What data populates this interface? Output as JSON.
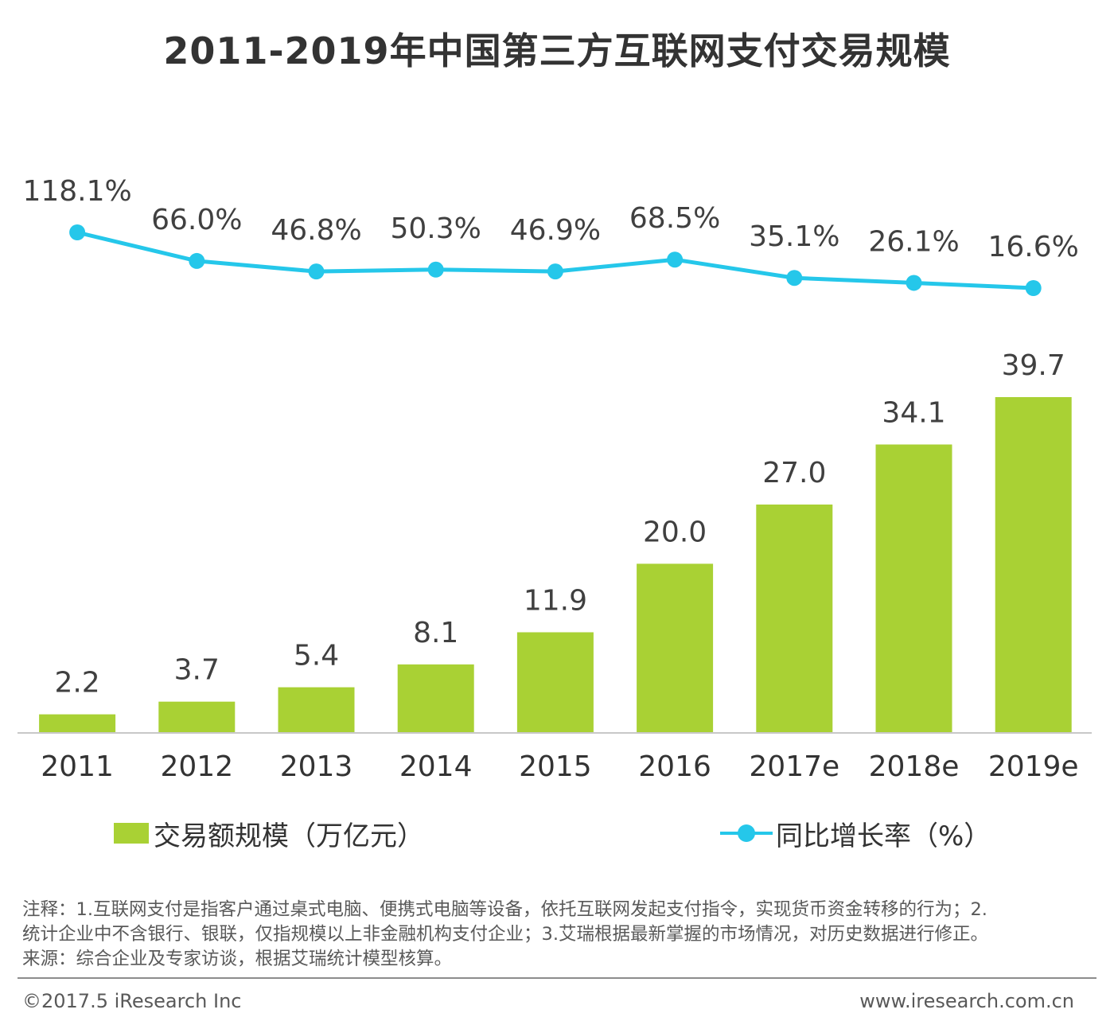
{
  "chart_data": {
    "type": "bar+line",
    "title": "2011-2019年中国第三方互联网支付交易规模",
    "categories": [
      "2011",
      "2012",
      "2013",
      "2014",
      "2015",
      "2016",
      "2017e",
      "2018e",
      "2019e"
    ],
    "series": [
      {
        "name": "交易额规模（万亿元）",
        "type": "bar",
        "values": [
          2.2,
          3.7,
          5.4,
          8.1,
          11.9,
          20.0,
          27.0,
          34.1,
          39.7
        ],
        "labels": [
          "2.2",
          "3.7",
          "5.4",
          "8.1",
          "11.9",
          "20.0",
          "27.0",
          "34.1",
          "39.7"
        ],
        "color": "#a9d134"
      },
      {
        "name": "同比增长率（%）",
        "type": "line",
        "values": [
          118.1,
          66.0,
          46.8,
          50.3,
          46.9,
          68.5,
          35.1,
          26.1,
          16.6
        ],
        "labels": [
          "118.1%",
          "66.0%",
          "46.8%",
          "50.3%",
          "46.9%",
          "68.5%",
          "35.1%",
          "26.1%",
          "16.6%"
        ],
        "color": "#25c7ea"
      }
    ]
  },
  "legend": {
    "bar_label": "交易额规模（万亿元）",
    "line_label": "同比增长率（%）"
  },
  "notes": {
    "line1": "注释：1.互联网支付是指客户通过桌式电脑、便携式电脑等设备，依托互联网发起支付指令，实现货币资金转移的行为；2.",
    "line2": "统计企业中不含银行、银联，仅指规模以上非金融机构支付企业；3.艾瑞根据最新掌握的市场情况，对历史数据进行修正。",
    "line3": "来源：综合企业及专家访谈，根据艾瑞统计模型核算。"
  },
  "footer": {
    "left": "©2017.5 iResearch Inc",
    "right": "www.iresearch.com.cn"
  }
}
